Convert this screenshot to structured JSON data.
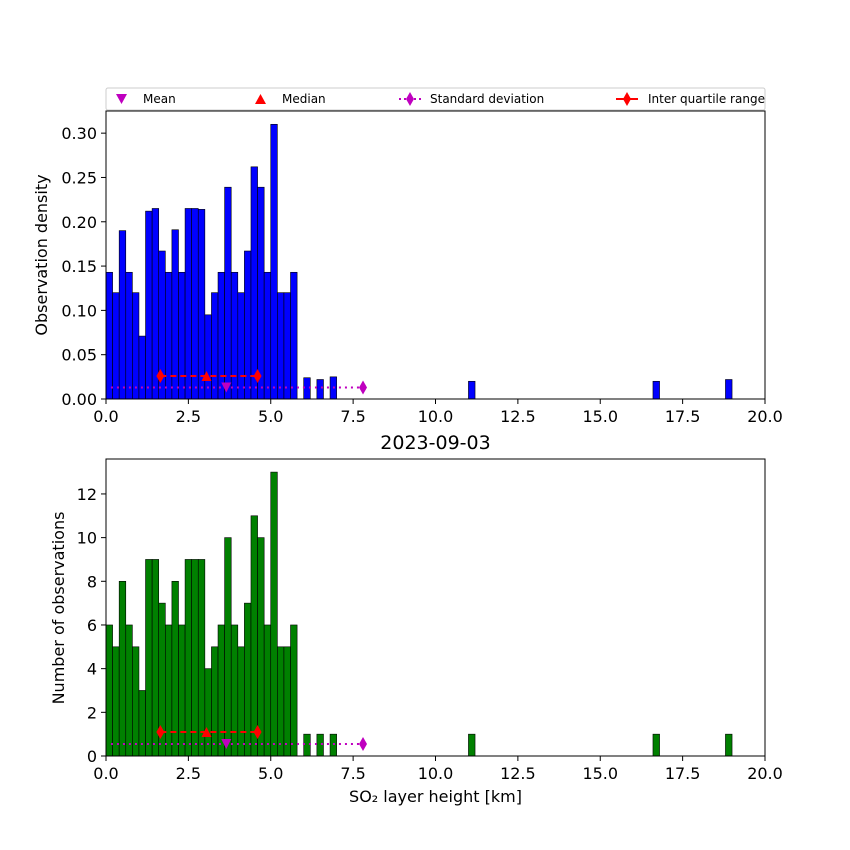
{
  "legend": {
    "mean": "Mean",
    "median": "Median",
    "std": "Standard deviation",
    "iqr": "Inter quartile range"
  },
  "colors": {
    "top_bars": "#0000ff",
    "bottom_bars": "#008000",
    "mean": "#bf00bf",
    "median": "#ff0000",
    "std": "#bf00bf",
    "iqr": "#ff0000"
  },
  "chart_data": [
    {
      "type": "bar",
      "xlabel": "",
      "ylabel": "Observation density",
      "xlim": [
        0,
        20
      ],
      "ylim": [
        0,
        0.325
      ],
      "xticks": [
        "0.0",
        "2.5",
        "5.0",
        "7.5",
        "10.0",
        "12.5",
        "15.0",
        "17.5",
        "20.0"
      ],
      "yticks": [
        "0.00",
        "0.05",
        "0.10",
        "0.15",
        "0.20",
        "0.25",
        "0.30"
      ],
      "bin_width": 0.2,
      "bin_starts": [
        0.0,
        0.2,
        0.4,
        0.6,
        0.8,
        1.0,
        1.2,
        1.4,
        1.6,
        1.8,
        2.0,
        2.2,
        2.4,
        2.6,
        2.8,
        3.0,
        3.2,
        3.4,
        3.6,
        3.8,
        4.0,
        4.2,
        4.4,
        4.6,
        4.8,
        5.0,
        5.2,
        5.4,
        5.6,
        6.0,
        6.4,
        6.8,
        11.0,
        16.6,
        18.8
      ],
      "values": [
        0.143,
        0.12,
        0.19,
        0.143,
        0.12,
        0.071,
        0.212,
        0.215,
        0.167,
        0.143,
        0.191,
        0.143,
        0.215,
        0.215,
        0.214,
        0.095,
        0.12,
        0.143,
        0.239,
        0.143,
        0.12,
        0.167,
        0.262,
        0.239,
        0.143,
        0.31,
        0.12,
        0.12,
        0.143,
        0.024,
        0.022,
        0.025,
        0.02,
        0.02,
        0.022
      ],
      "stats": {
        "mean": 3.65,
        "mean_y": 0.013,
        "median": 3.05,
        "median_y": 0.026,
        "std_range": [
          0.15,
          7.8
        ],
        "std_y": 0.013,
        "iqr_range": [
          1.65,
          4.6
        ],
        "iqr_y": 0.026
      }
    },
    {
      "type": "bar",
      "title": "2023-09-03",
      "xlabel": "SO₂ layer height [km]",
      "ylabel": "Number of observations",
      "xlim": [
        0,
        20
      ],
      "ylim": [
        0,
        13.6
      ],
      "xticks": [
        "0.0",
        "2.5",
        "5.0",
        "7.5",
        "10.0",
        "12.5",
        "15.0",
        "17.5",
        "20.0"
      ],
      "yticks": [
        "0",
        "2",
        "4",
        "6",
        "8",
        "10",
        "12"
      ],
      "bin_width": 0.2,
      "bin_starts": [
        0.0,
        0.2,
        0.4,
        0.6,
        0.8,
        1.0,
        1.2,
        1.4,
        1.6,
        1.8,
        2.0,
        2.2,
        2.4,
        2.6,
        2.8,
        3.0,
        3.2,
        3.4,
        3.6,
        3.8,
        4.0,
        4.2,
        4.4,
        4.6,
        4.8,
        5.0,
        5.2,
        5.4,
        5.6,
        6.0,
        6.4,
        6.8,
        11.0,
        16.6,
        18.8
      ],
      "values": [
        6,
        5,
        8,
        6,
        5,
        3,
        9,
        9,
        7,
        6,
        8,
        6,
        9,
        9,
        9,
        4,
        5,
        6,
        10,
        6,
        5,
        7,
        11,
        10,
        6,
        13,
        5,
        5,
        6,
        1,
        1,
        1,
        1,
        1,
        1
      ],
      "stats": {
        "mean": 3.65,
        "mean_y": 0.55,
        "median": 3.05,
        "median_y": 1.1,
        "std_range": [
          0.15,
          7.8
        ],
        "std_y": 0.55,
        "iqr_range": [
          1.65,
          4.6
        ],
        "iqr_y": 1.1
      }
    }
  ]
}
